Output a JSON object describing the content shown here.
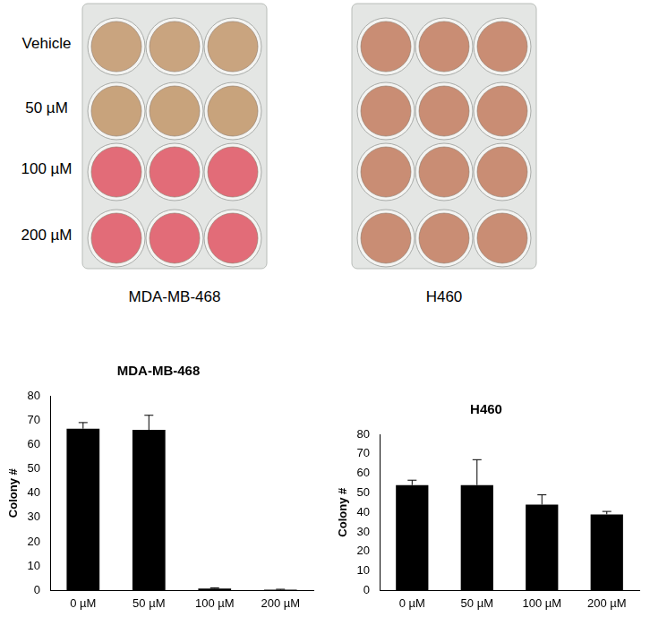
{
  "plates": {
    "row_labels": [
      "Vehicle",
      "50 µM",
      "100 µM",
      "200 µM"
    ],
    "plate_labels": [
      "MDA-MB-468",
      "H460"
    ]
  },
  "chart_data": [
    {
      "type": "bar",
      "title": "MDA-MB-468",
      "y_label": "Colony #",
      "categories": [
        "0 µM",
        "50 µM",
        "100 µM",
        "200 µM"
      ],
      "values": [
        66.5,
        66,
        0.8,
        0.3
      ],
      "errors": [
        2.5,
        6,
        0.3,
        0.2
      ],
      "color": "#000000",
      "ylim": [
        0,
        80
      ],
      "yticks": [
        0,
        10,
        20,
        30,
        40,
        50,
        60,
        70,
        80
      ],
      "grid": false
    },
    {
      "type": "bar",
      "title": "H460",
      "y_label": "Colony #",
      "categories": [
        "0 µM",
        "50 µM",
        "100 µM",
        "200 µM"
      ],
      "values": [
        54,
        54,
        44,
        39
      ],
      "errors": [
        2.5,
        13,
        5,
        1.5
      ],
      "color": "#000000",
      "ylim": [
        0,
        80
      ],
      "yticks": [
        0,
        10,
        20,
        30,
        40,
        50,
        60,
        70,
        80
      ],
      "grid": false
    }
  ]
}
